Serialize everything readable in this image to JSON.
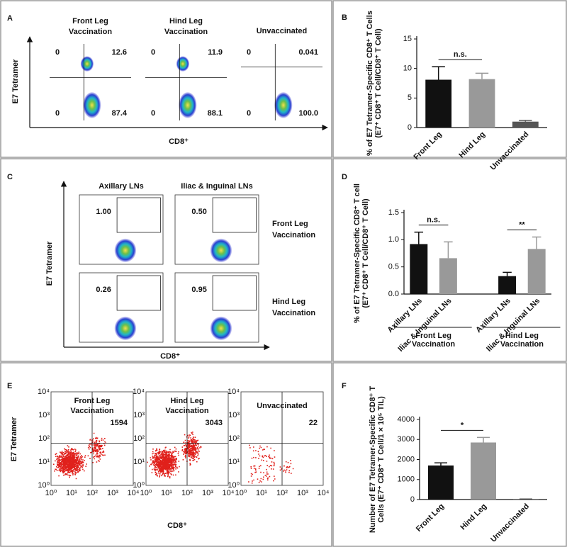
{
  "panel_a": {
    "letter": "A",
    "ylabel": "E7 Tetramer",
    "xlabel": "CD8⁺",
    "plots": [
      {
        "title": [
          "Front Leg",
          "Vaccination"
        ],
        "quadrants": [
          "0",
          "12.6",
          "0",
          "87.4"
        ]
      },
      {
        "title": [
          "Hind Leg",
          "Vaccination"
        ],
        "quadrants": [
          "0",
          "11.9",
          "0",
          "88.1"
        ]
      },
      {
        "title": [
          "Unvaccinated"
        ],
        "quadrants": [
          "0",
          "0.041",
          "0",
          "100.0"
        ]
      }
    ]
  },
  "panel_c": {
    "letter": "C",
    "ylabel": "E7 Tetramer",
    "xlabel": "CD8⁺",
    "columns": [
      "Axillary LNs",
      "Iliac & Inguinal LNs"
    ],
    "rows": [
      [
        "Front Leg",
        "Vaccination"
      ],
      [
        "Hind Leg",
        "Vaccination"
      ]
    ],
    "gates": [
      [
        "1.00",
        "0.50"
      ],
      [
        "0.26",
        "0.95"
      ]
    ]
  },
  "panel_e": {
    "letter": "E",
    "ylabel": "E7 Tetramer",
    "xlabel": "CD8⁺",
    "axis_ticks": [
      "10⁰",
      "10¹",
      "10²",
      "10³",
      "10⁴"
    ],
    "plots": [
      {
        "title": [
          "Front Leg",
          "Vaccination"
        ],
        "count": "1594"
      },
      {
        "title": [
          "Hind Leg",
          "Vaccination"
        ],
        "count": "3043"
      },
      {
        "title": [
          "Unvaccinated"
        ],
        "count": "22"
      }
    ]
  },
  "chart_data": [
    {
      "type": "bar",
      "letter": "B",
      "ylabel": [
        "% of E7 Tetramer-Specific CD8⁺ T Cells",
        "(E7⁺ CD8⁺ T Cell/CD8⁺ T Cell)"
      ],
      "categories": [
        "Front Leg",
        "Hind Leg",
        "Unvaccinated"
      ],
      "values": [
        8.1,
        8.2,
        1.0
      ],
      "errors": [
        2.2,
        1.0,
        0.2
      ],
      "colors": [
        "#111111",
        "#999999",
        "#555555"
      ],
      "ylim": [
        0,
        15
      ],
      "yticks": [
        0,
        5,
        10,
        15
      ],
      "annotations": [
        "n.s."
      ]
    },
    {
      "type": "bar",
      "letter": "D",
      "ylabel": [
        "% of E7 Tetramer-Specific CD8⁺ T cell",
        "(E7⁺ CD8⁺ T Cell/CD8⁺ T Cell)"
      ],
      "categories": [
        "Axillary LNs",
        "Iliac & Inguinal LNs",
        "Axillary LNs",
        "Iliac & Inguinal LNs"
      ],
      "groups": [
        [
          "Front Leg",
          "Vaccination"
        ],
        [
          "Hind Leg",
          "Vaccination"
        ]
      ],
      "values": [
        0.92,
        0.66,
        0.33,
        0.83
      ],
      "errors": [
        0.22,
        0.3,
        0.07,
        0.22
      ],
      "colors": [
        "#111111",
        "#999999",
        "#111111",
        "#999999"
      ],
      "ylim": [
        0,
        1.5
      ],
      "yticks": [
        {
          "value": 0,
          "label": "0.0"
        },
        {
          "value": 0.5,
          "label": "0.5"
        },
        {
          "value": 1,
          "label": "1.0"
        },
        {
          "value": 1.5,
          "label": "1.5"
        }
      ],
      "annotations": [
        "n.s.",
        "**"
      ]
    },
    {
      "type": "bar",
      "letter": "F",
      "ylabel": [
        "Number of E7 Tetramer-Specific CD8⁺ T",
        "Cells (E7⁺ CD8⁺ T Cell/1 × 10⁵ TIL)"
      ],
      "categories": [
        "Front Leg",
        "Hind Leg",
        "Unvaccinated"
      ],
      "values": [
        1700,
        2850,
        20
      ],
      "errors": [
        130,
        250,
        5
      ],
      "colors": [
        "#111111",
        "#999999",
        "#555555"
      ],
      "ylim": [
        0,
        4000
      ],
      "yticks": [
        0,
        1000,
        2000,
        3000,
        4000
      ],
      "annotations": [
        "*"
      ]
    }
  ]
}
